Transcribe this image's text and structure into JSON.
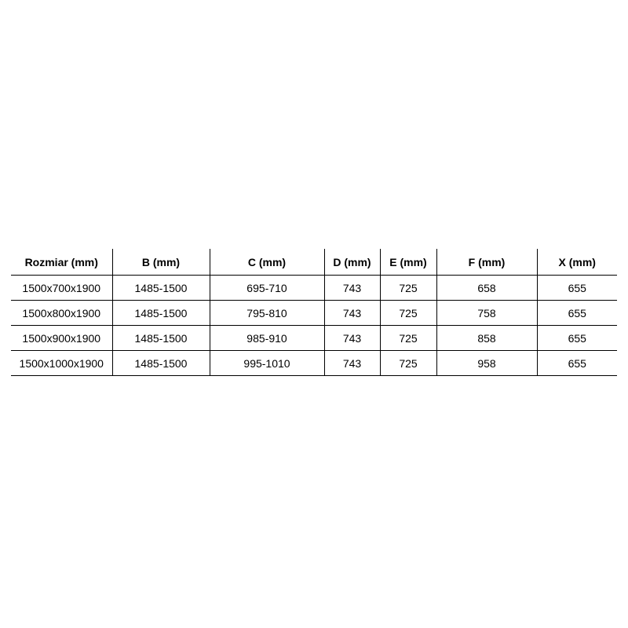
{
  "colors": {
    "background": "#ffffff",
    "border": "#000000",
    "text": "#000000"
  },
  "table": {
    "columns": [
      "Rozmiar (mm)",
      "B (mm)",
      "C (mm)",
      "D (mm)",
      "E (mm)",
      "F (mm)",
      "X (mm)"
    ],
    "rows": [
      [
        "1500x700x1900",
        "1485-1500",
        "695-710",
        "743",
        "725",
        "658",
        "655"
      ],
      [
        "1500x800x1900",
        "1485-1500",
        "795-810",
        "743",
        "725",
        "758",
        "655"
      ],
      [
        "1500x900x1900",
        "1485-1500",
        "985-910",
        "743",
        "725",
        "858",
        "655"
      ],
      [
        "1500x1000x1900",
        "1485-1500",
        "995-1010",
        "743",
        "725",
        "958",
        "655"
      ]
    ]
  }
}
